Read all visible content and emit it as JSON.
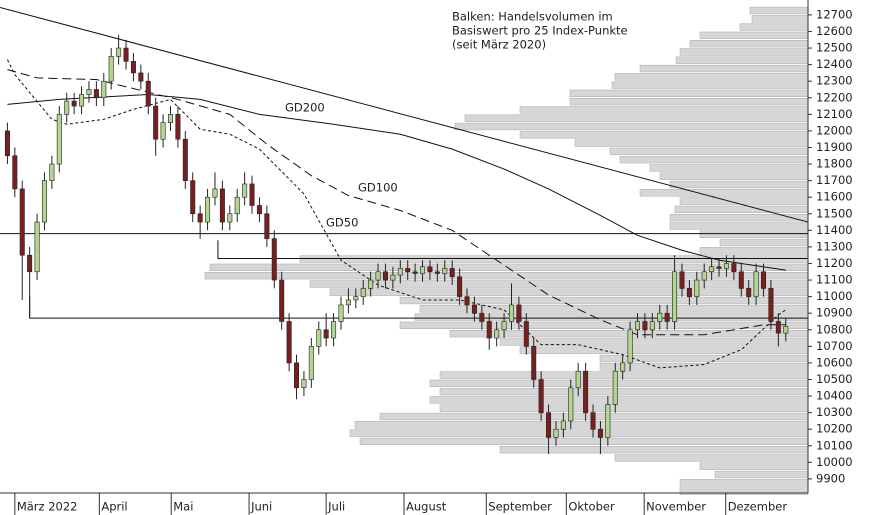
{
  "chart_data": {
    "type": "candlestick",
    "note": [
      "Balken: Handelsvolumen im",
      "Basiswert pro 25 Index-Punkte",
      "(seit März 2020)"
    ],
    "xlim": [
      -1,
      108
    ],
    "ylim": [
      9815,
      12790
    ],
    "yticks": [
      9900,
      10000,
      10100,
      10200,
      10300,
      10400,
      10500,
      10600,
      10700,
      10800,
      10900,
      11000,
      11100,
      11200,
      11300,
      11400,
      11500,
      11600,
      11700,
      11800,
      11900,
      12000,
      12100,
      12200,
      12300,
      12400,
      12500,
      12600,
      12700
    ],
    "xticks": [
      {
        "value": 1,
        "label": "März 2022"
      },
      {
        "value": 12.4,
        "label": "April"
      },
      {
        "value": 22.1,
        "label": "Mai"
      },
      {
        "value": 32.6,
        "label": "Juni"
      },
      {
        "value": 43,
        "label": "Juli"
      },
      {
        "value": 53.5,
        "label": "August"
      },
      {
        "value": 64.6,
        "label": "September"
      },
      {
        "value": 75.4,
        "label": "Oktober"
      },
      {
        "value": 85.9,
        "label": "November"
      },
      {
        "value": 96.9,
        "label": "Dezember"
      }
    ],
    "up_color": "#b3d68f",
    "down_color": "#7a1f1f",
    "candles": {
      "x": [
        0,
        1,
        2,
        3,
        4,
        5,
        6,
        7,
        8,
        9,
        10,
        11,
        12,
        13,
        14,
        15,
        16,
        17,
        18,
        19,
        20,
        21,
        22,
        23,
        24,
        25,
        26,
        27,
        28,
        29,
        30,
        31,
        32,
        33,
        34,
        35,
        36,
        37,
        38,
        39,
        40,
        41,
        42,
        43,
        44,
        45,
        46,
        47,
        48,
        49,
        50,
        51,
        52,
        53,
        54,
        55,
        56,
        57,
        58,
        59,
        60,
        61,
        62,
        63,
        64,
        65,
        66,
        67,
        68,
        69,
        70,
        71,
        72,
        73,
        74,
        75,
        76,
        77,
        78,
        79,
        80,
        81,
        82,
        83,
        84,
        85,
        86,
        87,
        88,
        89,
        90,
        91,
        92,
        93,
        94,
        95,
        96,
        97,
        98,
        99,
        100,
        101,
        102,
        103,
        104,
        105
      ],
      "open": [
        12000,
        11850,
        11650,
        11250,
        11150,
        11450,
        11700,
        11800,
        12100,
        12180,
        12150,
        12220,
        12250,
        12200,
        12300,
        12450,
        12500,
        12420,
        12350,
        12300,
        12150,
        11950,
        12050,
        12100,
        11950,
        11700,
        11500,
        11450,
        11600,
        11650,
        11450,
        11500,
        11600,
        11680,
        11550,
        11500,
        11350,
        11100,
        10850,
        10600,
        10450,
        10500,
        10700,
        10800,
        10750,
        10850,
        10950,
        10980,
        11000,
        11050,
        11100,
        11150,
        11100,
        11130,
        11170,
        11150,
        11140,
        11180,
        11150,
        11140,
        11170,
        11120,
        11000,
        10950,
        10900,
        10850,
        10750,
        10800,
        10850,
        10950,
        10850,
        10700,
        10500,
        10300,
        10150,
        10200,
        10250,
        10450,
        10550,
        10300,
        10200,
        10150,
        10350,
        10550,
        10600,
        10800,
        10850,
        10800,
        10850,
        10900,
        10850,
        11150,
        11050,
        11000,
        11100,
        11150,
        11180,
        11170,
        11200,
        11150,
        11050,
        11000,
        11150,
        11050,
        10850,
        10780
      ],
      "high": [
        12050,
        11900,
        11700,
        11300,
        11500,
        11750,
        11850,
        12150,
        12230,
        12230,
        12270,
        12300,
        12300,
        12350,
        12500,
        12580,
        12550,
        12470,
        12400,
        12350,
        12200,
        12100,
        12150,
        12150,
        12000,
        11750,
        11550,
        11650,
        11750,
        11700,
        11550,
        11650,
        11750,
        11730,
        11600,
        11550,
        11400,
        11150,
        10900,
        10650,
        10550,
        10750,
        10850,
        10900,
        10900,
        11000,
        11050,
        11050,
        11100,
        11150,
        11200,
        11200,
        11180,
        11220,
        11220,
        11200,
        11220,
        11220,
        11200,
        11220,
        11220,
        11170,
        11050,
        11000,
        10950,
        10900,
        10850,
        10900,
        11080,
        11000,
        10900,
        10750,
        10550,
        10350,
        10250,
        10300,
        10500,
        10600,
        10600,
        10350,
        10250,
        10400,
        10600,
        10650,
        10850,
        10900,
        10900,
        10900,
        10950,
        10950,
        11250,
        11200,
        11100,
        11150,
        11200,
        11230,
        11230,
        11250,
        11250,
        11200,
        11100,
        11200,
        11200,
        11100,
        10900,
        10870
      ],
      "low": [
        11800,
        11600,
        10980,
        10880,
        11100,
        11400,
        11650,
        11750,
        12050,
        12100,
        12100,
        12170,
        12150,
        12150,
        12250,
        12400,
        12370,
        12300,
        12250,
        12100,
        11850,
        11900,
        12000,
        11900,
        11650,
        11450,
        11350,
        11400,
        11550,
        11400,
        11400,
        11450,
        11550,
        11500,
        11450,
        11300,
        11050,
        10800,
        10550,
        10380,
        10400,
        10450,
        10650,
        10700,
        10700,
        10800,
        10900,
        10930,
        10950,
        11000,
        11050,
        11050,
        11050,
        11080,
        11100,
        11090,
        11090,
        11100,
        11090,
        11090,
        11070,
        10950,
        10900,
        10850,
        10800,
        10680,
        10700,
        10750,
        10800,
        10800,
        10650,
        10450,
        10250,
        10050,
        10100,
        10150,
        10200,
        10400,
        10250,
        10150,
        10050,
        10100,
        10300,
        10500,
        10550,
        10750,
        10750,
        10750,
        10800,
        10800,
        10800,
        11000,
        10950,
        10950,
        11050,
        11100,
        11120,
        11120,
        11100,
        11000,
        10950,
        10950,
        11000,
        10800,
        10700,
        10730
      ],
      "close": [
        11850,
        11650,
        11250,
        11150,
        11450,
        11700,
        11800,
        12100,
        12180,
        12150,
        12220,
        12250,
        12200,
        12300,
        12450,
        12500,
        12420,
        12350,
        12300,
        12150,
        11950,
        12050,
        12100,
        11950,
        11700,
        11500,
        11450,
        11600,
        11650,
        11450,
        11500,
        11600,
        11680,
        11550,
        11500,
        11350,
        11100,
        10850,
        10600,
        10450,
        10500,
        10700,
        10800,
        10750,
        10850,
        10950,
        10980,
        11000,
        11050,
        11100,
        11150,
        11100,
        11130,
        11170,
        11150,
        11140,
        11180,
        11150,
        11140,
        11170,
        11120,
        11000,
        10950,
        10900,
        10850,
        10750,
        10800,
        10850,
        10950,
        10850,
        10700,
        10500,
        10300,
        10150,
        10200,
        10250,
        10450,
        10550,
        10300,
        10200,
        10150,
        10350,
        10550,
        10600,
        10800,
        10850,
        10800,
        10850,
        10900,
        10850,
        11150,
        11050,
        11000,
        11100,
        11150,
        11180,
        11170,
        11200,
        11150,
        11050,
        11000,
        11150,
        11050,
        10850,
        10780,
        10820
      ]
    },
    "series": [
      {
        "name": "GD200",
        "color": "#111111",
        "dash": "solid",
        "x": [
          0,
          7,
          19,
          26,
          34,
          44,
          53,
          60,
          67,
          73,
          80,
          85,
          91,
          96,
          105
        ],
        "values": [
          12160,
          12190,
          12220,
          12190,
          12100,
          12040,
          11980,
          11890,
          11770,
          11650,
          11490,
          11370,
          11280,
          11220,
          11160
        ]
      },
      {
        "name": "GD100",
        "color": "#111111",
        "dash": "long-dash",
        "x": [
          0,
          4,
          12,
          23,
          30,
          35,
          41,
          46,
          53,
          60,
          67,
          73,
          80,
          85,
          94,
          102,
          105
        ],
        "values": [
          12370,
          12320,
          12310,
          12190,
          12100,
          11920,
          11730,
          11610,
          11520,
          11400,
          11190,
          11010,
          10860,
          10770,
          10770,
          10830,
          10830
        ]
      },
      {
        "name": "GD50",
        "color": "#111111",
        "dash": "short-dash",
        "x": [
          0,
          1,
          6,
          8,
          13,
          17,
          22,
          26,
          30,
          34,
          40,
          45,
          50,
          56,
          61,
          67,
          72,
          77,
          83,
          88,
          94,
          99,
          104,
          105
        ],
        "values": [
          12430,
          12340,
          12070,
          12040,
          12070,
          12130,
          12190,
          12010,
          11980,
          11890,
          11620,
          11220,
          11070,
          10980,
          10980,
          10920,
          10710,
          10710,
          10650,
          10570,
          10590,
          10680,
          10890,
          10920
        ]
      }
    ],
    "lines": [
      {
        "x": [
          -1,
          108
        ],
        "y": [
          12745,
          11450
        ]
      },
      {
        "x": [
          -1,
          108
        ],
        "y": [
          11380,
          11380
        ]
      },
      {
        "x": [
          28.4,
          28.4,
          108
        ],
        "y": [
          11340,
          11230,
          11230
        ]
      },
      {
        "x": [
          3,
          3,
          108
        ],
        "y": [
          11000,
          10870,
          10870
        ]
      }
    ],
    "profile": {
      "color": "#d6d6d6",
      "bins": [
        9800,
        9850,
        9900,
        9950,
        10000,
        10050,
        10100,
        10150,
        10200,
        10250,
        10300,
        10350,
        10400,
        10450,
        10500,
        10550,
        10600,
        10650,
        10700,
        10750,
        10800,
        10850,
        10900,
        10950,
        11000,
        11050,
        11100,
        11150,
        11200,
        11250,
        11300,
        11350,
        11400,
        11450,
        11500,
        11550,
        11600,
        11650,
        11700,
        11750,
        11800,
        11850,
        11900,
        11950,
        12000,
        12050,
        12100,
        12150,
        12200,
        12250,
        12300,
        12350,
        12400,
        12450,
        12500,
        12550,
        12600,
        12650,
        12700,
        12750
      ],
      "values": [
        128,
        128,
        93,
        108,
        193,
        308,
        448,
        458,
        453,
        428,
        368,
        378,
        368,
        378,
        368,
        208,
        208,
        288,
        308,
        358,
        408,
        393,
        388,
        408,
        478,
        498,
        603,
        598,
        508,
        108,
        88,
        108,
        138,
        138,
        133,
        128,
        168,
        138,
        148,
        158,
        188,
        198,
        233,
        288,
        353,
        343,
        288,
        238,
        238,
        196,
        193,
        168,
        132,
        128,
        118,
        108,
        68,
        56,
        58
      ]
    }
  }
}
